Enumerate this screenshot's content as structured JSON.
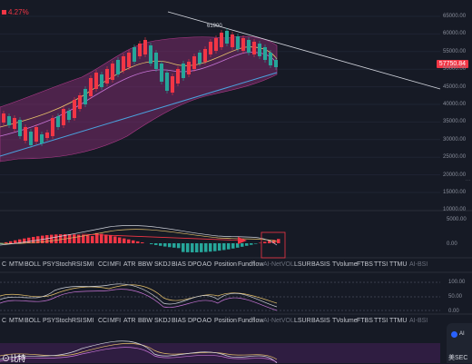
{
  "header": {
    "change_pct": "4.27%",
    "high_label": "61900"
  },
  "price_tag": "57750.84",
  "price_axis": [
    "65000.00",
    "60000.00",
    "55000.00",
    "50000.00",
    "45000.00",
    "40000.00",
    "35000.00",
    "30000.00",
    "25000.00",
    "20000.00",
    "15000.00",
    "10000.00"
  ],
  "macd_axis": [
    "5000.00",
    "0.00"
  ],
  "osc_axis": [
    "100.00",
    "50.00",
    "0.00"
  ],
  "tabs_1": [
    "C",
    "MTM",
    "BOLL",
    "PSY",
    "StochRSI",
    "SMI",
    "CCI",
    "MFI",
    "ATR",
    "BBW",
    "SKDJ",
    "BIAS",
    "DPO",
    "AO",
    "Position",
    "Fundflow",
    "AI-NetVOL",
    "LSUR",
    "BASIS",
    "TVolume",
    "FTBS",
    "TTSI",
    "TTMU",
    "AI-BSI"
  ],
  "tabs_2": [
    "C",
    "MTM",
    "BOLL",
    "PSY",
    "StochRSI",
    "SMI",
    "CCI",
    "MFI",
    "ATR",
    "BBW",
    "SKDJ",
    "BIAS",
    "DPO",
    "AO",
    "Position",
    "Fundflow",
    "AI-NetVOL",
    "LSUR",
    "BASIS",
    "TVolume",
    "FTBS",
    "TTSI",
    "TTMU",
    "AI-BSI"
  ],
  "chat": {
    "label": "AI",
    "text": "美SEC"
  },
  "bottom_text": "⊙ 比特",
  "colors": {
    "up": "#f23645",
    "down": "#26a69a",
    "band": "#7b2b6b",
    "background": "#161a25"
  }
}
